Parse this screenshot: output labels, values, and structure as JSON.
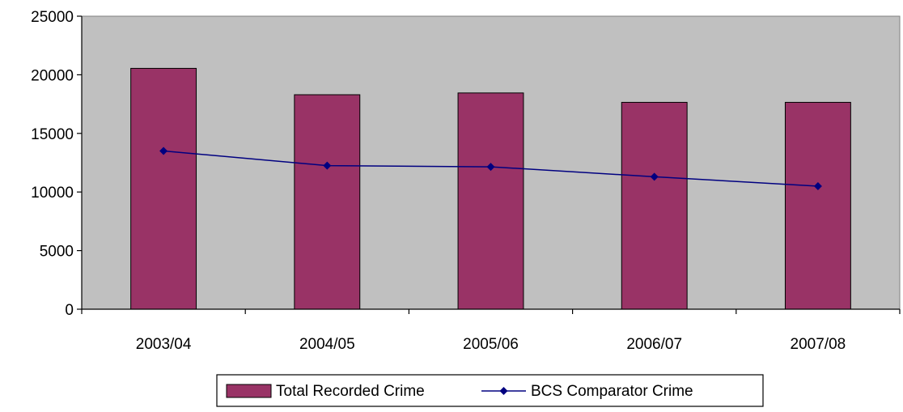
{
  "chart_data": {
    "type": "bar",
    "categories": [
      "2003/04",
      "2004/05",
      "2005/06",
      "2006/07",
      "2007/08"
    ],
    "series": [
      {
        "name": "Total Recorded Crime",
        "type": "bar",
        "values": [
          20550,
          18300,
          18450,
          17650,
          17650
        ]
      },
      {
        "name": "BCS Comparator Crime",
        "type": "line",
        "values": [
          13500,
          12250,
          12150,
          11300,
          10500
        ]
      }
    ],
    "ylim": [
      0,
      25000
    ],
    "yticks": [
      0,
      5000,
      10000,
      15000,
      20000,
      25000
    ],
    "grid": false,
    "legend_position": "bottom",
    "colors": {
      "plot_background": "#c0c0c0",
      "bar_fill": "#993366",
      "line": "#000080",
      "axis": "#000000"
    }
  }
}
